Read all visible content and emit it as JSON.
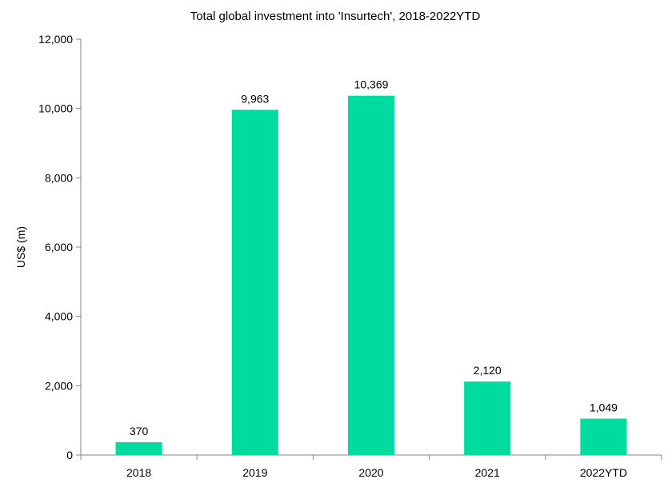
{
  "chart_data": {
    "type": "bar",
    "title": "Total global investment into 'Insurtech', 2018-2022YTD",
    "xlabel": "",
    "ylabel": "US$ (m)",
    "categories": [
      "2018",
      "2019",
      "2020",
      "2021",
      "2022YTD"
    ],
    "values": [
      370,
      9963,
      10369,
      2120,
      1049
    ],
    "value_labels": [
      "370",
      "9,963",
      "10,369",
      "2,120",
      "1,049"
    ],
    "ylim": [
      0,
      12000
    ],
    "y_ticks": [
      0,
      2000,
      4000,
      6000,
      8000,
      10000,
      12000
    ],
    "y_tick_labels": [
      "0",
      "2,000",
      "4,000",
      "6,000",
      "8,000",
      "10,000",
      "12,000"
    ],
    "grid": false,
    "legend": "none",
    "bar_color": "#00DBA0"
  }
}
